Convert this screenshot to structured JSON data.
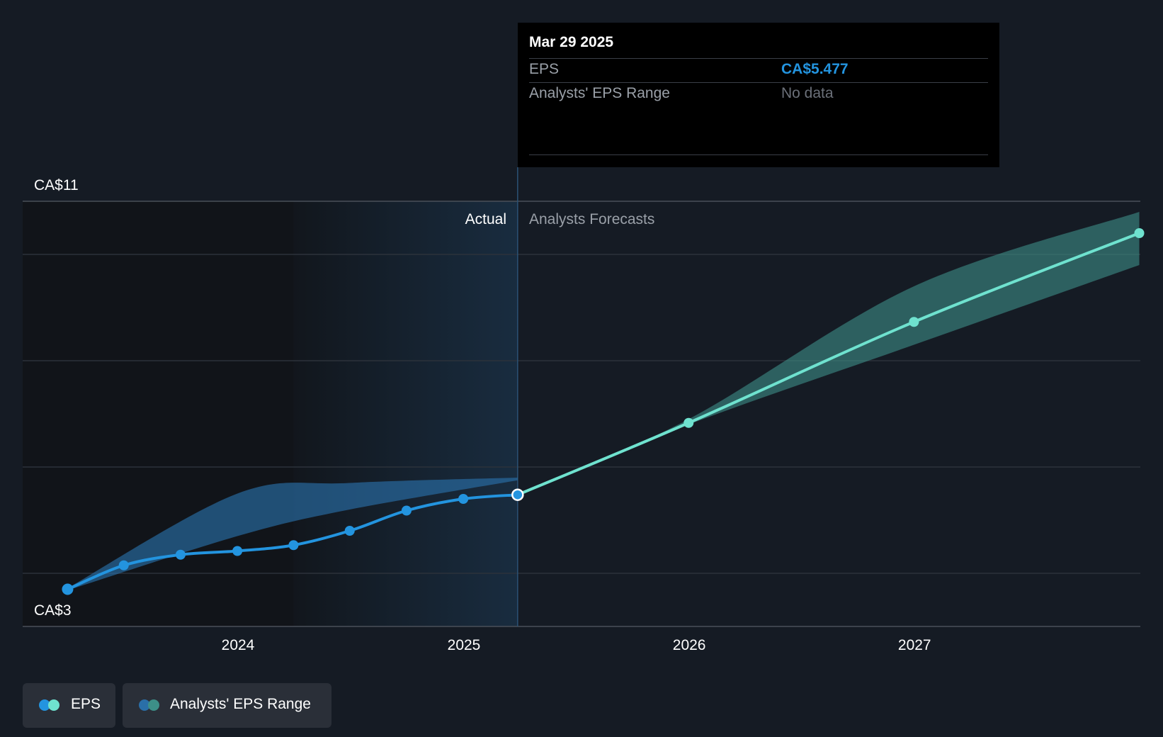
{
  "chart_data": {
    "type": "line",
    "y_axis": {
      "ticks": [
        "CA$11",
        "CA$3"
      ],
      "ylim": [
        3,
        11
      ]
    },
    "x_axis": {
      "ticks": [
        "2024",
        "2025",
        "2026",
        "2027"
      ]
    },
    "sections": {
      "actual_label": "Actual",
      "forecast_label": "Analysts Forecasts"
    },
    "series": [
      {
        "name": "EPS",
        "color_actual": "#2394df",
        "color_forecast": "#6fe2cf",
        "actual_points": [
          {
            "x": "2023-03-31",
            "y": 3.7
          },
          {
            "x": "2023-06-30",
            "y": 4.15
          },
          {
            "x": "2023-09-30",
            "y": 4.35
          },
          {
            "x": "2023-12-31",
            "y": 4.42
          },
          {
            "x": "2024-03-31",
            "y": 4.53
          },
          {
            "x": "2024-06-30",
            "y": 4.8
          },
          {
            "x": "2024-09-30",
            "y": 5.18
          },
          {
            "x": "2024-12-31",
            "y": 5.4
          },
          {
            "x": "2025-03-29",
            "y": 5.477
          }
        ],
        "forecast_points": [
          {
            "x": "2025-03-29",
            "y": 5.477
          },
          {
            "x": "2025-12-31",
            "y": 6.83
          },
          {
            "x": "2026-12-31",
            "y": 8.73
          },
          {
            "x": "2027-12-31",
            "y": 10.4
          }
        ]
      }
    ],
    "range_band": {
      "name": "Analysts' EPS Range",
      "historical_color": "#2a6fa8",
      "forecast_color": "#3d8f88",
      "historical_points": [
        {
          "x": "2023-03-31",
          "upper": 3.72,
          "lower": 3.68
        },
        {
          "x": "2023-12-31",
          "upper": 5.5,
          "lower": 4.7
        },
        {
          "x": "2024-06-30",
          "upper": 5.7,
          "lower": 5.2
        },
        {
          "x": "2025-03-29",
          "upper": 5.8,
          "lower": 5.75
        }
      ],
      "forecast_points": [
        {
          "x": "2025-03-29",
          "upper": 5.48,
          "lower": 5.47
        },
        {
          "x": "2025-12-31",
          "upper": 6.9,
          "lower": 6.8
        },
        {
          "x": "2026-12-31",
          "upper": 9.4,
          "lower": 8.3
        },
        {
          "x": "2027-12-31",
          "upper": 10.8,
          "lower": 9.8
        }
      ]
    },
    "highlight": {
      "x": "2025-03-29",
      "y": 5.477
    },
    "grid": true
  },
  "tooltip": {
    "date": "Mar 29 2025",
    "rows": [
      {
        "label": "EPS",
        "value": "CA$5.477",
        "value_color": "#2394df"
      },
      {
        "label": "Analysts' EPS Range",
        "value": "No data",
        "value_color": "#6b7079"
      }
    ]
  },
  "legend": [
    {
      "label": "EPS",
      "colors": [
        "#2394df",
        "#6fe2cf"
      ]
    },
    {
      "label": "Analysts' EPS Range",
      "colors": [
        "#2a6fa8",
        "#3d8f88"
      ]
    }
  ]
}
